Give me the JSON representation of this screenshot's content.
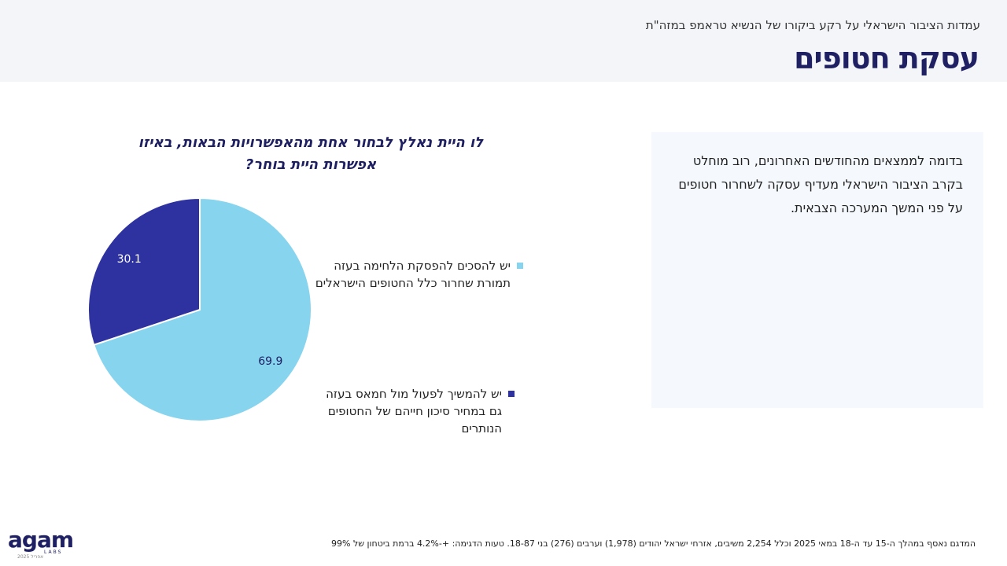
{
  "header": {
    "subtitle": "עמדות הציבור הישראלי על רקע ביקורו של הנשיא טראמפ במזה\"ת",
    "title": "עסקת חטופים"
  },
  "colors": {
    "light_blue": "#87d4ee",
    "dark_blue": "#2e31a0",
    "title_navy": "#1f2063"
  },
  "chart_data": {
    "type": "pie",
    "title": "לו היית נאלץ לבחור אחת מהאפשרויות הבאות, באיזו אפשרות היית בוחר?",
    "slices": [
      {
        "label": "יש להסכים להפסקת הלחימה בעזה תמורת שחרור כלל החטופים הישראלים",
        "value": 69.9,
        "value_label": "69.9",
        "color": "#87d4ee"
      },
      {
        "label": "יש להמשיך לפעול מול חמאס בעזה גם במחיר סיכון חייהם של החטופים הנותרים",
        "value": 30.1,
        "value_label": "30.1",
        "color": "#2e31a0"
      }
    ],
    "legend_position": "right"
  },
  "summary": {
    "text": "בדומה לממצאים מהחודשים האחרונים, רוב מוחלט בקרב הציבור הישראלי מעדיף עסקה לשחרור חטופים על פני המשך המערכה הצבאית."
  },
  "footnote": "המדגם נאסף במהלך ה-15 עד ה-18 במאי 2025 וכלל 2,254 משיבים, אזרחי ישראל יהודים (1,978) וערבים (276) בני 18-87. טעות הדגימה: +-4.2% ברמת ביטחון של 99%",
  "logo": {
    "main": "agam",
    "sub": "LABS",
    "date": "אפריל 2025"
  }
}
